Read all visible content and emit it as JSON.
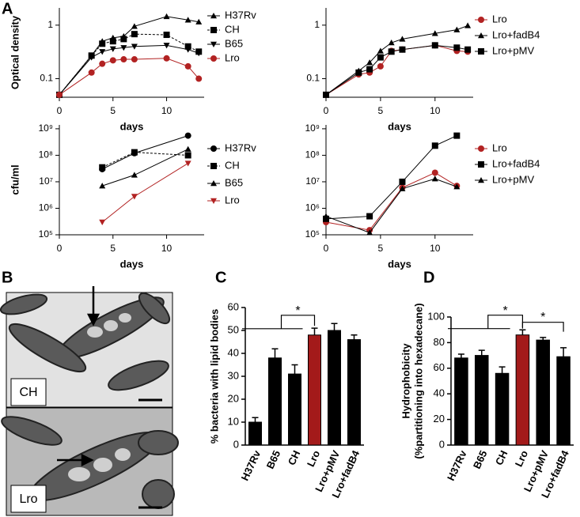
{
  "panel_labels": [
    "A",
    "B",
    "C",
    "D"
  ],
  "micrograph_labels": [
    "CH",
    "Lro"
  ],
  "chart_data": [
    {
      "type": "line",
      "yscale": "log",
      "ylabel": "Optical density",
      "xlabel": "days",
      "legend": "right",
      "x": [
        0,
        3,
        4,
        5,
        6,
        7,
        10,
        12,
        13
      ],
      "xlim": [
        0,
        13.5
      ],
      "xticks": [
        0,
        5,
        10
      ],
      "ylim": [
        0.045,
        2.1
      ],
      "yticks": [
        0.1,
        1
      ],
      "series": [
        {
          "name": "H37Rv",
          "color": "#000000",
          "marker": "triangle",
          "values": [
            0.05,
            0.27,
            0.5,
            0.58,
            0.62,
            0.95,
            1.45,
            1.25,
            1.15
          ]
        },
        {
          "name": "CH",
          "color": "#000000",
          "marker": "square",
          "dashed": true,
          "values": [
            0.05,
            0.27,
            0.45,
            0.5,
            0.55,
            0.68,
            0.66,
            0.4,
            0.32
          ]
        },
        {
          "name": "B65",
          "color": "#000000",
          "marker": "triangle-down",
          "values": [
            0.05,
            0.25,
            0.32,
            0.36,
            0.38,
            0.4,
            0.42,
            0.35,
            0.3
          ]
        },
        {
          "name": "Lro",
          "color": "#b22222",
          "marker": "circle",
          "values": [
            0.05,
            0.13,
            0.19,
            0.22,
            0.23,
            0.23,
            0.24,
            0.17,
            0.1
          ]
        }
      ]
    },
    {
      "type": "line",
      "yscale": "log",
      "xlabel": "days",
      "legend": "right",
      "x": [
        0,
        3,
        4,
        5,
        6,
        7,
        10,
        12,
        13
      ],
      "xlim": [
        0,
        13.5
      ],
      "xticks": [
        0,
        5,
        10
      ],
      "ylim": [
        0.045,
        2.1
      ],
      "yticks": [
        0.1,
        1
      ],
      "series": [
        {
          "name": "Lro",
          "color": "#b22222",
          "marker": "circle",
          "values": [
            0.05,
            0.12,
            0.13,
            0.17,
            0.33,
            0.35,
            0.42,
            0.33,
            0.32
          ]
        },
        {
          "name": "Lro+fadB4",
          "color": "#000000",
          "marker": "triangle",
          "values": [
            0.05,
            0.14,
            0.2,
            0.33,
            0.47,
            0.55,
            0.7,
            0.82,
            0.98
          ]
        },
        {
          "name": "Lro+pMV",
          "color": "#000000",
          "marker": "square",
          "values": [
            0.05,
            0.13,
            0.15,
            0.25,
            0.32,
            0.35,
            0.42,
            0.38,
            0.35
          ]
        }
      ]
    },
    {
      "type": "line",
      "yscale": "log",
      "ylabel": "cfu/ml",
      "xlabel": "days",
      "legend": "right",
      "x": [
        4,
        7,
        12
      ],
      "xlim": [
        0,
        13.5
      ],
      "xticks": [
        0,
        5,
        10
      ],
      "ylim": [
        100000,
        1400000000
      ],
      "yticks": [
        {
          "value": 100000,
          "label": "10⁵"
        },
        {
          "value": 1000000,
          "label": "10⁶"
        },
        {
          "value": 10000000,
          "label": "10⁷"
        },
        {
          "value": 100000000,
          "label": "10⁸"
        },
        {
          "value": 1000000000,
          "label": "10⁹"
        }
      ],
      "series": [
        {
          "name": "H37Rv",
          "color": "#000000",
          "marker": "circle",
          "values": [
            30000000,
            120000000,
            550000000
          ]
        },
        {
          "name": "CH",
          "color": "#000000",
          "marker": "square",
          "dashed": true,
          "values": [
            35000000,
            130000000,
            100000000
          ]
        },
        {
          "name": "B65",
          "color": "#000000",
          "marker": "triangle",
          "values": [
            7000000,
            18000000,
            170000000
          ]
        },
        {
          "name": "Lro",
          "color": "#b22222",
          "marker": "triangle-down",
          "values": [
            300000,
            2800000,
            50000000
          ]
        }
      ]
    },
    {
      "type": "line",
      "yscale": "log",
      "xlabel": "days",
      "legend": "right",
      "x": [
        0,
        4,
        7,
        10,
        12
      ],
      "xlim": [
        0,
        13.5
      ],
      "xticks": [
        0,
        5,
        10
      ],
      "ylim": [
        100000,
        1400000000
      ],
      "yticks": [
        {
          "value": 100000,
          "label": "10⁵"
        },
        {
          "value": 1000000,
          "label": "10⁶"
        },
        {
          "value": 10000000,
          "label": "10⁷"
        },
        {
          "value": 100000000,
          "label": "10⁸"
        },
        {
          "value": 1000000000,
          "label": "10⁹"
        }
      ],
      "series": [
        {
          "name": "Lro",
          "color": "#b22222",
          "marker": "circle",
          "values": [
            300000,
            150000,
            6000000,
            22000000,
            7000000
          ]
        },
        {
          "name": "Lro+fadB4",
          "color": "#000000",
          "marker": "square",
          "values": [
            400000,
            500000,
            10000000,
            230000000,
            550000000
          ]
        },
        {
          "name": "Lro+pMV",
          "color": "#000000",
          "marker": "triangle",
          "values": [
            500000,
            120000,
            5500000,
            13000000,
            6500000
          ]
        }
      ]
    },
    {
      "type": "bar",
      "ylabel": "% bacteria with lipid bodies",
      "categories": [
        "H37Rv",
        "B65",
        "CH",
        "Lro",
        "Lro+pMV",
        "Lro+fadB4"
      ],
      "values": [
        10,
        38,
        31,
        48,
        50,
        46
      ],
      "errors": [
        2,
        4,
        4,
        3,
        3,
        2
      ],
      "colors": [
        "#000000",
        "#000000",
        "#000000",
        "#a31a1a",
        "#000000",
        "#000000"
      ],
      "ylim": [
        0,
        60
      ],
      "yticks": [
        0,
        10,
        20,
        30,
        40,
        50,
        60
      ],
      "annotations": [
        "*"
      ]
    },
    {
      "type": "bar",
      "ylabel": [
        "Hydrophobicity",
        "(%partitioning into hexadecane)"
      ],
      "categories": [
        "H37Rv",
        "B65",
        "CH",
        "Lro",
        "Lro+pMV",
        "Lro+fadB4"
      ],
      "values": [
        68,
        70,
        56,
        86,
        82,
        69
      ],
      "errors": [
        3,
        4,
        5,
        4,
        2,
        7
      ],
      "colors": [
        "#000000",
        "#000000",
        "#000000",
        "#a31a1a",
        "#000000",
        "#000000"
      ],
      "ylim": [
        0,
        100
      ],
      "yticks": [
        0,
        20,
        40,
        60,
        80,
        100
      ],
      "annotations": [
        "*",
        "*"
      ]
    }
  ]
}
